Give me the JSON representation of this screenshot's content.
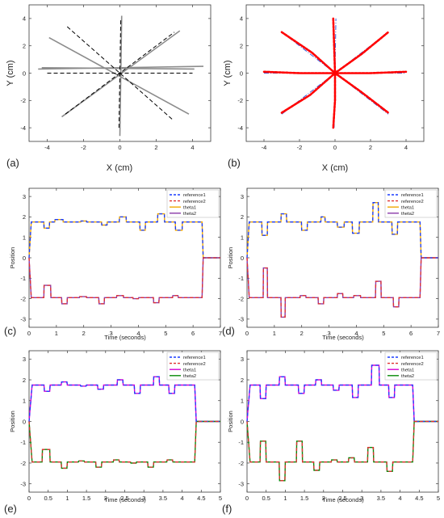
{
  "figure": {
    "panel_labels": [
      "(a)",
      "(b)",
      "(c)",
      "(d)",
      "(e)",
      "(f)"
    ]
  },
  "chart_data": [
    {
      "id": "a",
      "type": "line",
      "panel_label": "(a)",
      "xlabel": "X (cm)",
      "ylabel": "Y (cm)",
      "xlim": [
        -5,
        5
      ],
      "ylim": [
        -5,
        5
      ],
      "xticks": [
        -4,
        -2,
        0,
        2,
        4
      ],
      "yticks": [
        -4,
        -2,
        0,
        2,
        4
      ],
      "reference_segments": [
        [
          [
            -4.0,
            0.0
          ],
          [
            4.0,
            0.0
          ]
        ],
        [
          [
            -0.05,
            -4.0
          ],
          [
            0.05,
            4.0
          ]
        ],
        [
          [
            -2.9,
            3.4
          ],
          [
            2.9,
            -3.4
          ]
        ],
        [
          [
            -3.0,
            -3.0
          ],
          [
            3.0,
            3.0
          ]
        ]
      ],
      "measured_segments": [
        [
          [
            -4.5,
            0.3
          ],
          [
            4.6,
            0.5
          ]
        ],
        [
          [
            -4.3,
            0.4
          ],
          [
            4.1,
            0.3
          ]
        ],
        [
          [
            -3.9,
            2.6
          ],
          [
            3.8,
            -3.0
          ]
        ],
        [
          [
            -3.2,
            -3.2
          ],
          [
            3.3,
            3.1
          ]
        ],
        [
          [
            0.0,
            -4.6
          ],
          [
            0.1,
            4.2
          ]
        ]
      ],
      "colors": {
        "reference": "#000000",
        "measured": "#8c8c8c"
      }
    },
    {
      "id": "b",
      "type": "line",
      "panel_label": "(b)",
      "xlabel": "X (cm)",
      "ylabel": "Y (cm)",
      "xlim": [
        -5,
        5
      ],
      "ylim": [
        -5,
        5
      ],
      "xticks": [
        -4,
        -2,
        0,
        2,
        4
      ],
      "yticks": [
        -4,
        -2,
        0,
        2,
        4
      ],
      "reference_segments": [
        [
          [
            -4.0,
            0.0
          ],
          [
            4.0,
            0.0
          ]
        ],
        [
          [
            -0.05,
            -4.0
          ],
          [
            0.05,
            4.0
          ]
        ],
        [
          [
            -3.0,
            -3.0
          ],
          [
            3.0,
            3.0
          ]
        ],
        [
          [
            -3.0,
            3.0
          ],
          [
            3.0,
            -3.0
          ]
        ]
      ],
      "measured_curves": [
        [
          [
            -4.0,
            0.1
          ],
          [
            -2.0,
            0.0
          ],
          [
            0,
            0
          ],
          [
            2.0,
            0.0
          ],
          [
            4.0,
            0.1
          ]
        ],
        [
          [
            -0.1,
            4.0
          ],
          [
            -0.05,
            2.0
          ],
          [
            0,
            0
          ],
          [
            0.0,
            -2.0
          ],
          [
            -0.1,
            -4.0
          ]
        ],
        [
          [
            -3.0,
            3.0
          ],
          [
            -1.3,
            1.5
          ],
          [
            0,
            0
          ],
          [
            1.5,
            -1.4
          ],
          [
            3.0,
            -2.9
          ]
        ],
        [
          [
            -3.0,
            -2.9
          ],
          [
            -1.4,
            -1.6
          ],
          [
            0,
            0
          ],
          [
            1.5,
            1.4
          ],
          [
            3.0,
            3.0
          ]
        ]
      ],
      "colors": {
        "reference": "#3b5bdb",
        "measured": "#ff0000"
      }
    },
    {
      "id": "c",
      "type": "line",
      "panel_label": "(c)",
      "xlabel": "Time (seconds)",
      "ylabel": "Position",
      "xlim": [
        0,
        7
      ],
      "ylim": [
        -3.4,
        3.4
      ],
      "xticks": [
        0,
        1,
        2,
        3,
        4,
        5,
        6,
        7
      ],
      "yticks": [
        -3,
        -2,
        -1,
        0,
        1,
        2,
        3
      ],
      "legend": [
        "reference1",
        "reference2",
        "theta1",
        "theta2"
      ],
      "legend_position": "top-right",
      "colors": [
        "#1a3cff",
        "#e03030",
        "#f0a800",
        "#8b3aa8"
      ],
      "styles": [
        "dashed",
        "dashed",
        "solid",
        "solid"
      ],
      "theta1_base": 1.75,
      "theta2_base": -1.95,
      "end_time": 6.33,
      "grid": false,
      "theta1_moves": [
        [
          0.55,
          0.75,
          -0.3
        ],
        [
          0.95,
          1.25,
          0.12
        ],
        [
          1.9,
          2.1,
          0.05
        ],
        [
          2.65,
          2.85,
          -0.15
        ],
        [
          3.3,
          3.55,
          0.25
        ],
        [
          4.05,
          4.25,
          -0.4
        ],
        [
          4.7,
          4.95,
          0.4
        ],
        [
          5.35,
          5.6,
          -0.4
        ]
      ],
      "theta2_moves": [
        [
          0.55,
          0.8,
          0.6
        ],
        [
          1.2,
          1.4,
          -0.3
        ],
        [
          1.85,
          2.1,
          0.05
        ],
        [
          2.55,
          2.75,
          -0.3
        ],
        [
          3.2,
          3.45,
          0.1
        ],
        [
          3.8,
          4.0,
          -0.05
        ],
        [
          4.55,
          4.75,
          -0.25
        ],
        [
          5.25,
          5.45,
          0.1
        ]
      ]
    },
    {
      "id": "d",
      "type": "line",
      "panel_label": "(d)",
      "xlabel": "Time (seconds)",
      "ylabel": "Position",
      "xlim": [
        0,
        7
      ],
      "ylim": [
        -3.4,
        3.4
      ],
      "xticks": [
        0,
        1,
        2,
        3,
        4,
        5,
        6,
        7
      ],
      "yticks": [
        -3,
        -2,
        -1,
        0,
        1,
        2,
        3
      ],
      "legend": [
        "reference1",
        "reference2",
        "theta1",
        "theta2"
      ],
      "legend_position": "top-right",
      "colors": [
        "#1a3cff",
        "#e03030",
        "#f0a800",
        "#8b3aa8"
      ],
      "styles": [
        "dashed",
        "dashed",
        "solid",
        "solid"
      ],
      "theta1_base": 1.75,
      "theta2_base": -1.95,
      "end_time": 6.33,
      "grid": false,
      "theta1_moves": [
        [
          0.55,
          0.75,
          -0.65
        ],
        [
          1.25,
          1.45,
          0.4
        ],
        [
          2.0,
          2.2,
          -0.4
        ],
        [
          2.7,
          2.85,
          0.25
        ],
        [
          3.3,
          3.55,
          -0.25
        ],
        [
          3.85,
          4.1,
          -0.55
        ],
        [
          4.6,
          4.8,
          0.95
        ],
        [
          5.3,
          5.5,
          -0.6
        ]
      ],
      "theta2_moves": [
        [
          0.6,
          0.75,
          1.45
        ],
        [
          1.25,
          1.4,
          -0.95
        ],
        [
          1.95,
          2.15,
          0.1
        ],
        [
          2.6,
          2.8,
          -0.3
        ],
        [
          3.3,
          3.5,
          0.2
        ],
        [
          3.9,
          4.15,
          0.1
        ],
        [
          4.7,
          4.9,
          0.8
        ],
        [
          5.35,
          5.55,
          -0.45
        ]
      ]
    },
    {
      "id": "e",
      "type": "line",
      "panel_label": "(e)",
      "xlabel": "Time (seconds)",
      "ylabel": "Position",
      "xlim": [
        0,
        5
      ],
      "ylim": [
        -3.4,
        3.4
      ],
      "xticks": [
        0,
        0.5,
        1,
        1.5,
        2,
        2.5,
        3,
        3.5,
        4,
        4.5,
        5
      ],
      "yticks": [
        -3,
        -2,
        -1,
        0,
        1,
        2,
        3
      ],
      "legend": [
        "reference1",
        "reference2",
        "theta1",
        "theta2"
      ],
      "legend_position": "top-right",
      "colors": [
        "#1a3cff",
        "#e03030",
        "#d400d4",
        "#0a8a0a"
      ],
      "styles": [
        "dashed",
        "dashed",
        "solid",
        "solid"
      ],
      "theta1_base": 1.75,
      "theta2_base": -1.95,
      "end_time": 4.33,
      "grid": false,
      "theta1_moves": [
        [
          0.4,
          0.55,
          -0.3
        ],
        [
          0.85,
          1.0,
          0.15
        ],
        [
          1.35,
          1.5,
          -0.05
        ],
        [
          1.8,
          1.95,
          -0.2
        ],
        [
          2.3,
          2.45,
          0.25
        ],
        [
          2.75,
          2.9,
          -0.4
        ],
        [
          3.25,
          3.4,
          0.4
        ],
        [
          3.65,
          3.8,
          -0.4
        ]
      ],
      "theta2_moves": [
        [
          0.35,
          0.55,
          0.6
        ],
        [
          0.85,
          1.0,
          -0.3
        ],
        [
          1.3,
          1.45,
          0.05
        ],
        [
          1.75,
          1.9,
          -0.25
        ],
        [
          2.2,
          2.35,
          0.1
        ],
        [
          2.65,
          2.8,
          -0.05
        ],
        [
          3.1,
          3.25,
          -0.25
        ],
        [
          3.6,
          3.75,
          0.1
        ]
      ]
    },
    {
      "id": "f",
      "type": "line",
      "panel_label": "(f)",
      "xlabel": "Time (seconds)",
      "ylabel": "Position",
      "xlim": [
        0,
        5
      ],
      "ylim": [
        -3.4,
        3.4
      ],
      "xticks": [
        0,
        0.5,
        1,
        1.5,
        2,
        2.5,
        3,
        3.5,
        4,
        4.5,
        5
      ],
      "yticks": [
        -3,
        -2,
        -1,
        0,
        1,
        2,
        3
      ],
      "legend": [
        "reference1",
        "reference2",
        "theta1",
        "theta2"
      ],
      "legend_position": "top-right",
      "colors": [
        "#1a3cff",
        "#e03030",
        "#d400d4",
        "#0a8a0a"
      ],
      "styles": [
        "dashed",
        "dashed",
        "solid",
        "solid"
      ],
      "theta1_base": 1.75,
      "theta2_base": -1.95,
      "end_time": 4.33,
      "grid": false,
      "theta1_moves": [
        [
          0.35,
          0.5,
          -0.65
        ],
        [
          0.85,
          1.0,
          0.4
        ],
        [
          1.35,
          1.5,
          -0.4
        ],
        [
          1.8,
          1.95,
          0.25
        ],
        [
          2.25,
          2.4,
          -0.25
        ],
        [
          2.75,
          2.9,
          -0.6
        ],
        [
          3.25,
          3.45,
          0.95
        ],
        [
          3.7,
          3.85,
          -0.6
        ]
      ],
      "theta2_moves": [
        [
          0.35,
          0.5,
          1.0
        ],
        [
          0.85,
          1.0,
          -0.9
        ],
        [
          1.3,
          1.45,
          1.0
        ],
        [
          1.75,
          1.9,
          -0.4
        ],
        [
          2.2,
          2.35,
          0.1
        ],
        [
          2.65,
          2.8,
          0.2
        ],
        [
          3.15,
          3.3,
          0.7
        ],
        [
          3.65,
          3.8,
          -0.45
        ]
      ]
    }
  ]
}
